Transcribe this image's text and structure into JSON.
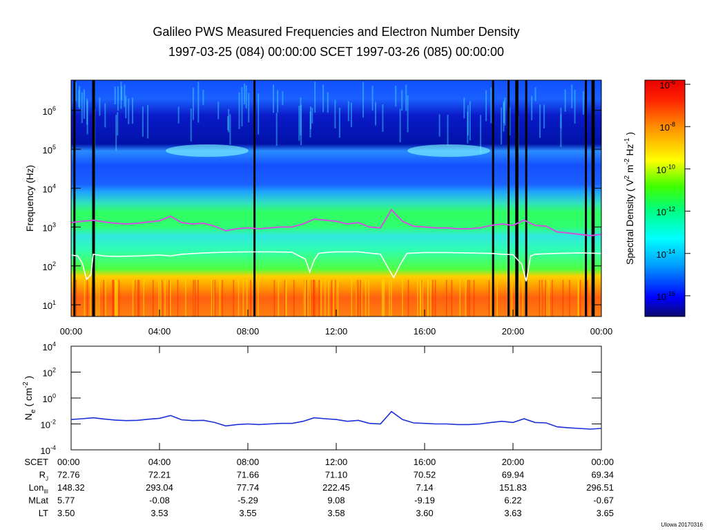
{
  "title": "Galileo PWS Measured Frequencies and Electron Number Density",
  "subtitle": "1997-03-25 (084) 00:00:00 SCET 1997-03-26 (085) 00:00:00",
  "footer": "UIowa 20170316",
  "colors": {
    "fpe_line": "#d050e0",
    "fce_line": "#ffffff",
    "density_line": "#1a2fd8",
    "data_gap": "#000000"
  },
  "chart_data": [
    {
      "type": "heatmap",
      "title": "Galileo PWS Measured Frequencies and Electron Number Density",
      "ylabel": "Frequency (Hz)",
      "y_scale": "log",
      "ylim": [
        5,
        6000000
      ],
      "y_ticks": [
        {
          "value": 10,
          "label": "10",
          "exp": "1"
        },
        {
          "value": 100,
          "label": "10",
          "exp": "2"
        },
        {
          "value": 1000,
          "label": "10",
          "exp": "3"
        },
        {
          "value": 10000,
          "label": "10",
          "exp": "4"
        },
        {
          "value": 100000,
          "label": "10",
          "exp": "5"
        },
        {
          "value": 1000000,
          "label": "10",
          "exp": "6"
        }
      ],
      "x_hours": [
        0,
        24
      ],
      "x_ticks": [
        {
          "hour": 0,
          "label": "00:00"
        },
        {
          "hour": 4,
          "label": "04:00"
        },
        {
          "hour": 8,
          "label": "08:00"
        },
        {
          "hour": 12,
          "label": "12:00"
        },
        {
          "hour": 16,
          "label": "16:00"
        },
        {
          "hour": 20,
          "label": "20:00"
        },
        {
          "hour": 24,
          "label": "00:00"
        }
      ],
      "data_gap_hours": [
        0.15,
        1.0,
        1.03,
        8.3,
        19.1,
        19.8,
        20.15,
        20.2,
        20.6,
        23.3,
        23.6,
        23.65
      ],
      "series": [
        {
          "name": "",
          "x": [
            0,
            0.5,
            1,
            1.5,
            2,
            2.5,
            3,
            3.5,
            4,
            4.5,
            5,
            5.5,
            6,
            6.5,
            7,
            7.5,
            8,
            8.5,
            9,
            9.5,
            10,
            10.5,
            11,
            11.5,
            12,
            12.5,
            13,
            13.5,
            14,
            14.5,
            15,
            15.5,
            16,
            16.5,
            17,
            17.5,
            18,
            18.5,
            19,
            19.5,
            20,
            20.5,
            21,
            21.5,
            22,
            22.5,
            23,
            23.5,
            24
          ],
          "y": [
            1300,
            1400,
            1500,
            1350,
            1250,
            1200,
            1250,
            1350,
            1450,
            1900,
            1300,
            1200,
            1250,
            1050,
            800,
            900,
            950,
            900,
            950,
            1000,
            1000,
            1200,
            1600,
            1500,
            1400,
            1200,
            1300,
            1000,
            950,
            2800,
            1400,
            1050,
            1000,
            950,
            950,
            900,
            900,
            950,
            1100,
            1200,
            1100,
            1500,
            1100,
            1050,
            750,
            700,
            650,
            600,
            650
          ]
        },
        {
          "name": "",
          "x": [
            0,
            0.3,
            0.5,
            0.7,
            0.9,
            1,
            1.2,
            1.5,
            2,
            3,
            4,
            4.5,
            5,
            6,
            7,
            8,
            9,
            10,
            10.6,
            10.8,
            11,
            11.2,
            11.5,
            12,
            13,
            14,
            14.3,
            14.6,
            14.9,
            15.2,
            16,
            17,
            18,
            19,
            19.5,
            20,
            20.4,
            20.6,
            20.8,
            21,
            22,
            23,
            24
          ],
          "y": [
            190,
            180,
            120,
            45,
            60,
            200,
            190,
            180,
            175,
            180,
            190,
            180,
            200,
            215,
            225,
            230,
            230,
            225,
            150,
            70,
            140,
            210,
            220,
            230,
            230,
            200,
            100,
            50,
            110,
            210,
            220,
            220,
            215,
            210,
            200,
            195,
            110,
            40,
            180,
            200,
            210,
            215,
            210
          ]
        }
      ],
      "colorbar": {
        "label_main": "Spectral Density ( V",
        "label_exp1": "2",
        "label_mid": " m",
        "label_exp2": "-2",
        "label_mid2": " Hz",
        "label_exp3": "-1",
        "label_end": " )",
        "ticks": [
          {
            "label": "10",
            "exp": "-6"
          },
          {
            "label": "10",
            "exp": "-8"
          },
          {
            "label": "10",
            "exp": "-10"
          },
          {
            "label": "10",
            "exp": "-12"
          },
          {
            "label": "10",
            "exp": "-14"
          },
          {
            "label": "10",
            "exp": "-16"
          }
        ]
      }
    },
    {
      "type": "line",
      "ylabel_main": "N",
      "ylabel_sub": "e",
      "ylabel_rest": " ( cm",
      "ylabel_exp": "-2",
      "ylabel_end": " )",
      "y_scale": "log",
      "ylim": [
        0.0001,
        10000
      ],
      "y_ticks": [
        {
          "value": 0.0001,
          "label": "10",
          "exp": "-4"
        },
        {
          "value": 0.01,
          "label": "10",
          "exp": "-2"
        },
        {
          "value": 1,
          "label": "10",
          "exp": "0"
        },
        {
          "value": 100,
          "label": "10",
          "exp": "2"
        },
        {
          "value": 10000,
          "label": "10",
          "exp": "4"
        }
      ],
      "series": [
        {
          "name": "",
          "x": [
            0,
            0.5,
            1,
            1.5,
            2,
            2.5,
            3,
            3.5,
            4,
            4.5,
            5,
            5.5,
            6,
            6.5,
            7,
            7.5,
            8,
            8.5,
            9,
            9.5,
            10,
            10.5,
            11,
            11.5,
            12,
            12.5,
            13,
            13.5,
            14,
            14.5,
            15,
            15.5,
            16,
            16.5,
            17,
            17.5,
            18,
            18.5,
            19,
            19.5,
            20,
            20.5,
            21,
            21.5,
            22,
            22.5,
            23,
            23.5,
            24
          ],
          "y": [
            0.022,
            0.025,
            0.03,
            0.024,
            0.02,
            0.018,
            0.019,
            0.023,
            0.027,
            0.045,
            0.021,
            0.018,
            0.019,
            0.013,
            0.007,
            0.009,
            0.01,
            0.009,
            0.01,
            0.011,
            0.011,
            0.016,
            0.03,
            0.025,
            0.022,
            0.016,
            0.019,
            0.011,
            0.01,
            0.09,
            0.022,
            0.012,
            0.011,
            0.01,
            0.01,
            0.009,
            0.009,
            0.01,
            0.013,
            0.016,
            0.013,
            0.025,
            0.013,
            0.012,
            0.006,
            0.005,
            0.0045,
            0.004,
            0.0045
          ]
        }
      ]
    }
  ],
  "ephemeris": {
    "rows": [
      {
        "label": "SCET",
        "sub": "",
        "values": [
          "00:00",
          "04:00",
          "08:00",
          "12:00",
          "16:00",
          "20:00",
          "00:00"
        ]
      },
      {
        "label": "R",
        "sub": "J",
        "values": [
          "72.76",
          "72.21",
          "71.66",
          "71.10",
          "70.52",
          "69.94",
          "69.34"
        ]
      },
      {
        "label": "Lon",
        "sub": "III",
        "values": [
          "148.32",
          "293.04",
          "77.74",
          "222.45",
          "7.14",
          "151.83",
          "296.51"
        ]
      },
      {
        "label": "MLat",
        "sub": "",
        "values": [
          "5.77",
          "-0.08",
          "-5.29",
          "9.08",
          "-9.19",
          "6.22",
          "-0.67"
        ]
      },
      {
        "label": "LT",
        "sub": "",
        "values": [
          "3.50",
          "3.53",
          "3.55",
          "3.58",
          "3.60",
          "3.63",
          "3.65"
        ]
      }
    ]
  }
}
